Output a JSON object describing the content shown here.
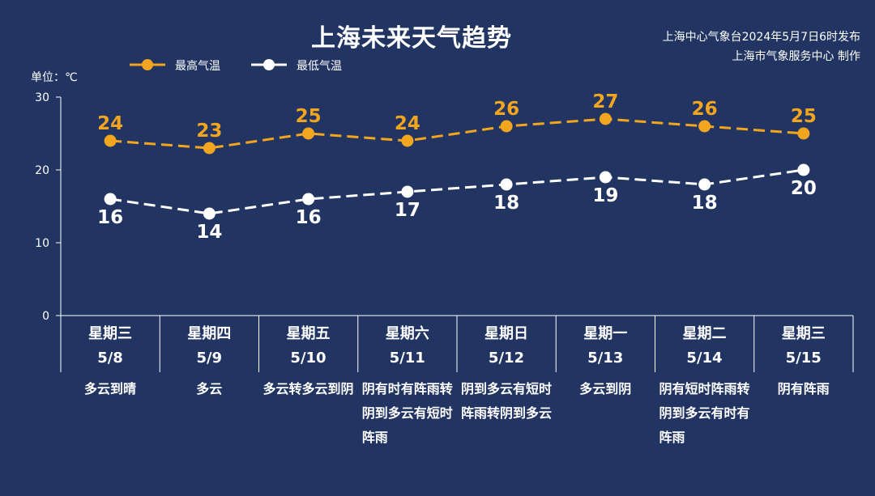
{
  "title": "上海未来天气趋势",
  "publisher": {
    "line1": "上海中心气象台2024年5月7日6时发布",
    "line2": "上海市气象服务中心 制作"
  },
  "colors": {
    "background": "#223462",
    "high": "#f2a51e",
    "low": "#ffffff",
    "axis": "#ffffff"
  },
  "chart_data": {
    "type": "line",
    "unit_label": "单位：℃",
    "ylim": [
      0,
      30
    ],
    "yticks": [
      0,
      10,
      20,
      30
    ],
    "grid": false,
    "legend_placement": "top-left",
    "categories": [
      "5/8",
      "5/9",
      "5/10",
      "5/11",
      "5/12",
      "5/13",
      "5/14",
      "5/15"
    ],
    "weekdays": [
      "星期三",
      "星期四",
      "星期五",
      "星期六",
      "星期日",
      "星期一",
      "星期二",
      "星期三"
    ],
    "weather": [
      "多云到晴",
      "多云",
      "多云转多云到阴",
      "阴有时有阵雨转阴到多云有短时阵雨",
      "阴到多云有短时阵雨转阴到多云",
      "多云到阴",
      "阴有短时阵雨转阴到多云有时有阵雨",
      "阴有阵雨"
    ],
    "series": [
      {
        "name": "最高气温",
        "values": [
          24,
          23,
          25,
          24,
          26,
          27,
          26,
          25
        ]
      },
      {
        "name": "最低气温",
        "values": [
          16,
          14,
          16,
          17,
          18,
          19,
          18,
          20
        ]
      }
    ]
  }
}
